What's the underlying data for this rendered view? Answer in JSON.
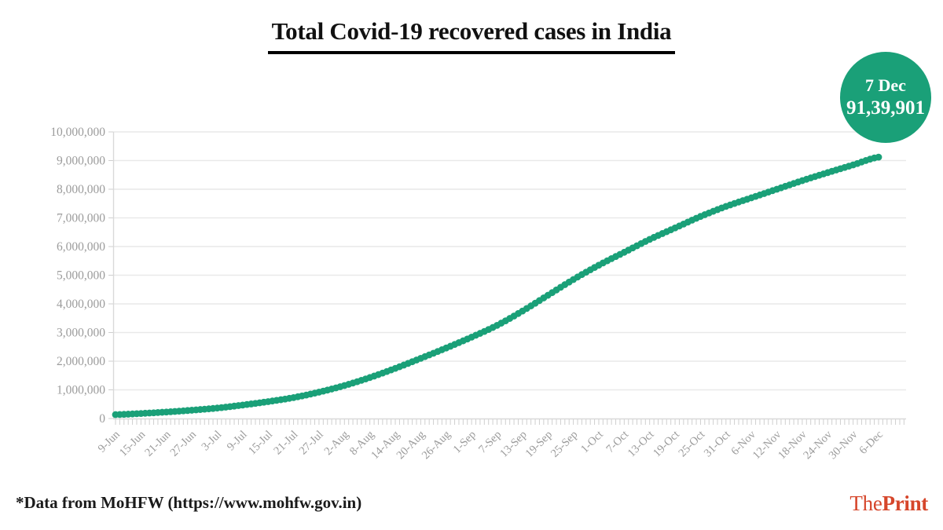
{
  "title": "Total Covid-19 recovered cases in India",
  "badge": {
    "date": "7 Dec",
    "value": "91,39,901",
    "bg_color": "#1aa078",
    "text_color": "#ffffff"
  },
  "footer": {
    "source_note": "*Data from MoHFW (https://www.mohfw.gov.in)"
  },
  "brand": {
    "part1": "The",
    "part2": "Print",
    "color": "#d6462b"
  },
  "colors": {
    "accent_green": "#1aa078",
    "grid_line": "#e9e9e9",
    "axis_line": "#d9d9d9",
    "tick_mark": "#cfcfcf",
    "label_gray": "#9b9b9b",
    "title_black": "#111111"
  },
  "chart_data": {
    "type": "line",
    "title": "Total Covid-19 recovered cases in India",
    "xlabel": "",
    "ylabel": "",
    "grid": "horizontal",
    "legend": "none",
    "marker_style": "dots-daily",
    "ylim": [
      0,
      10000000
    ],
    "y_tick_step": 1000000,
    "y_tick_labels": [
      "0",
      "1,000,000",
      "2,000,000",
      "3,000,000",
      "4,000,000",
      "5,000,000",
      "6,000,000",
      "7,000,000",
      "8,000,000",
      "9,000,000",
      "10,000,000"
    ],
    "x_tick_interval_days": 6,
    "x_tick_labels": [
      "9-Jun",
      "15-Jun",
      "21-Jun",
      "27-Jun",
      "3-Jul",
      "9-Jul",
      "15-Jul",
      "21-Jul",
      "27-Jul",
      "2-Aug",
      "8-Aug",
      "14-Aug",
      "20-Aug",
      "26-Aug",
      "1-Sep",
      "7-Sep",
      "13-Sep",
      "19-Sep",
      "25-Sep",
      "1-Oct",
      "7-Oct",
      "13-Oct",
      "19-Oct",
      "25-Oct",
      "31-Oct",
      "6-Nov",
      "12-Nov",
      "18-Nov",
      "24-Nov",
      "30-Nov",
      "6-Dec"
    ],
    "series": [
      {
        "name": "Total Covid-19 recovered cases",
        "color": "#1aa078",
        "values_at_ticks": [
          135000,
          175000,
          227000,
          290000,
          365000,
          470000,
          590000,
          730000,
          920000,
          1150000,
          1430000,
          1750000,
          2100000,
          2460000,
          2840000,
          3250000,
          3750000,
          4300000,
          4850000,
          5350000,
          5800000,
          6250000,
          6650000,
          7050000,
          7400000,
          7700000,
          8000000,
          8300000,
          8580000,
          8850000,
          9120000
        ]
      }
    ],
    "annotation": {
      "label": "7 Dec",
      "value": 9139901,
      "value_formatted": "91,39,901"
    }
  }
}
